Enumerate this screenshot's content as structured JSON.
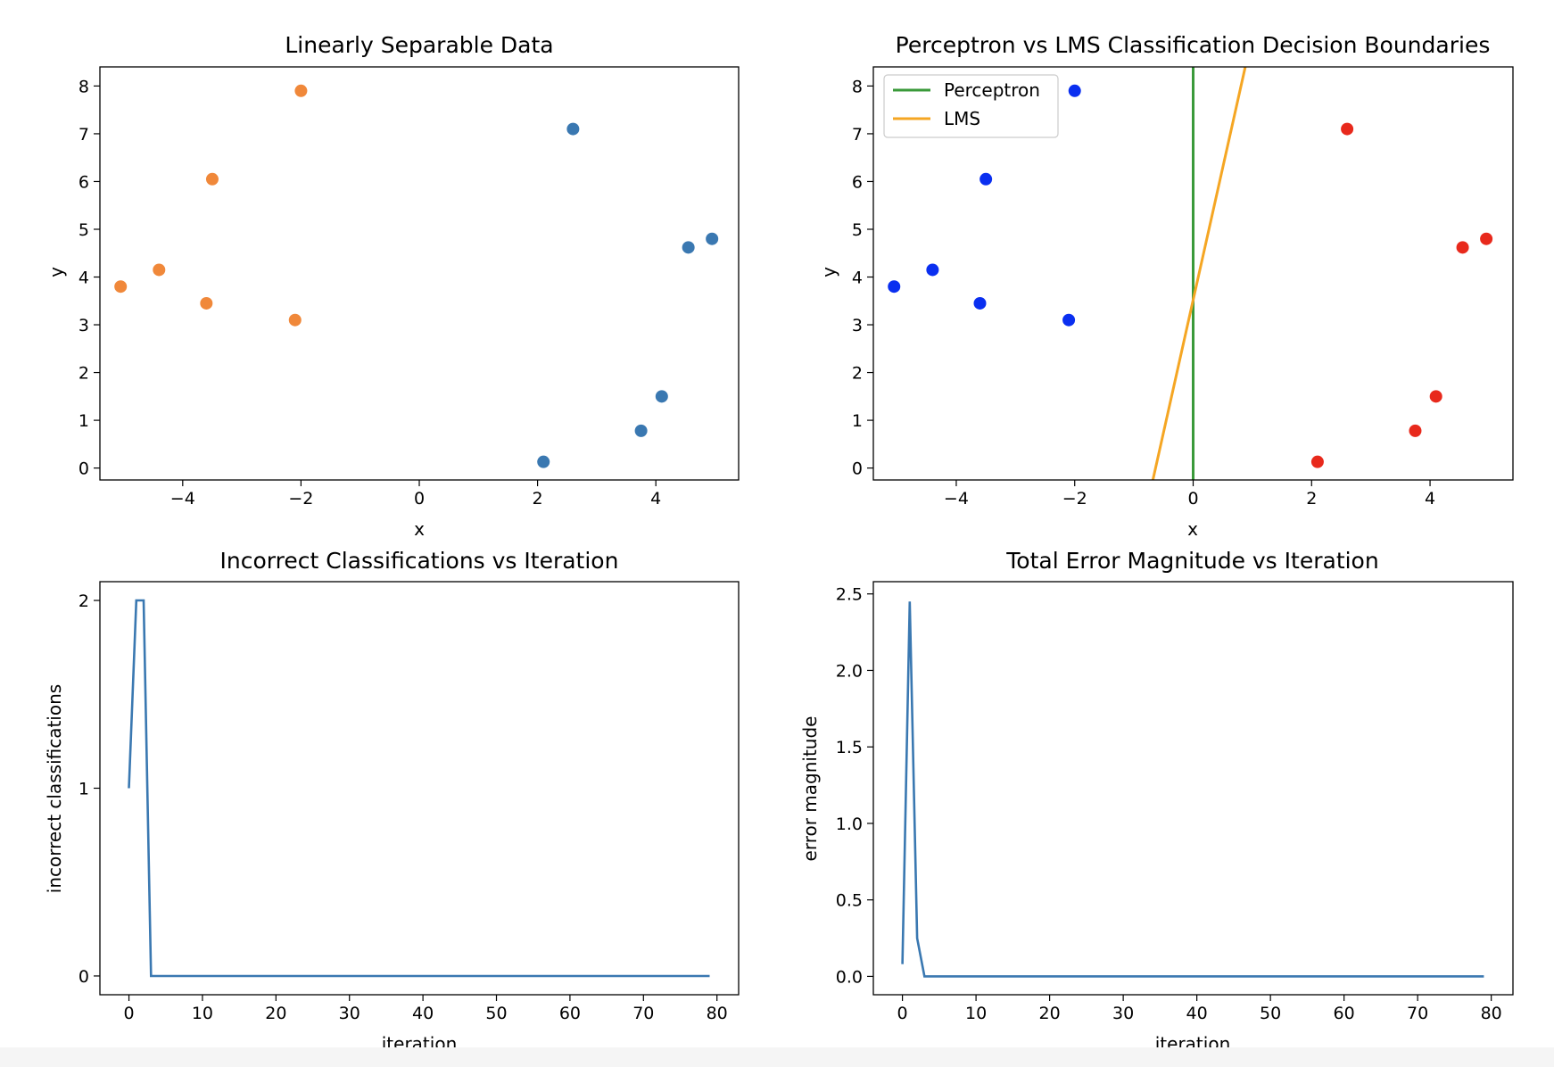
{
  "chart_data": [
    {
      "type": "scatter",
      "title": "Linearly Separable Data",
      "xlabel": "x",
      "ylabel": "y",
      "xlim": [
        -5.4,
        5.4
      ],
      "ylim": [
        -0.25,
        8.4
      ],
      "xticks": [
        -4,
        -2,
        0,
        2,
        4
      ],
      "yticks": [
        0,
        1,
        2,
        3,
        4,
        5,
        6,
        7,
        8
      ],
      "grid": false,
      "series": [
        {
          "color": "#f0883a",
          "points": [
            [
              -2.0,
              7.9
            ],
            [
              -3.5,
              6.05
            ],
            [
              -4.4,
              4.15
            ],
            [
              -5.05,
              3.8
            ],
            [
              -3.6,
              3.45
            ],
            [
              -2.1,
              3.1
            ]
          ]
        },
        {
          "color": "#3a78b1",
          "points": [
            [
              2.6,
              7.1
            ],
            [
              4.55,
              4.62
            ],
            [
              4.95,
              4.8
            ],
            [
              4.1,
              1.5
            ],
            [
              3.75,
              0.78
            ],
            [
              2.1,
              0.13
            ]
          ]
        }
      ]
    },
    {
      "type": "scatter",
      "title": "Perceptron vs LMS Classification Decision Boundaries",
      "xlabel": "x",
      "ylabel": "y",
      "xlim": [
        -5.4,
        5.4
      ],
      "ylim": [
        -0.25,
        8.4
      ],
      "xticks": [
        -4,
        -2,
        0,
        2,
        4
      ],
      "yticks": [
        0,
        1,
        2,
        3,
        4,
        5,
        6,
        7,
        8
      ],
      "grid": false,
      "legend_position": "top-left",
      "series": [
        {
          "color": "#0a2ff0",
          "points": [
            [
              -2.0,
              7.9
            ],
            [
              -3.5,
              6.05
            ],
            [
              -4.4,
              4.15
            ],
            [
              -5.05,
              3.8
            ],
            [
              -3.6,
              3.45
            ],
            [
              -2.1,
              3.1
            ]
          ]
        },
        {
          "color": "#e8291c",
          "points": [
            [
              2.6,
              7.1
            ],
            [
              4.55,
              4.62
            ],
            [
              4.95,
              4.8
            ],
            [
              4.1,
              1.5
            ],
            [
              3.75,
              0.78
            ],
            [
              2.1,
              0.13
            ]
          ]
        }
      ],
      "lines": [
        {
          "name": "Perceptron",
          "color": "#3a9a3a",
          "x": [
            0,
            0
          ],
          "y": [
            -0.25,
            8.4
          ]
        },
        {
          "name": "LMS",
          "color": "#f5a623",
          "x": [
            -0.68,
            0.88
          ],
          "y": [
            -0.25,
            8.4
          ]
        }
      ]
    },
    {
      "type": "line",
      "title": "Incorrect Classifications vs Iteration",
      "xlabel": "iteration",
      "ylabel": "incorrect classifications",
      "xlim": [
        -3.95,
        82.95
      ],
      "ylim": [
        -0.1,
        2.1
      ],
      "xticks": [
        0,
        10,
        20,
        30,
        40,
        50,
        60,
        70,
        80
      ],
      "yticks": [
        0,
        1,
        2
      ],
      "grid": false,
      "series": [
        {
          "color": "#3a78b1",
          "x": [
            0,
            1,
            2,
            3,
            79
          ],
          "y": [
            1,
            2,
            2,
            0,
            0
          ]
        }
      ]
    },
    {
      "type": "line",
      "title": "Total Error Magnitude vs Iteration",
      "xlabel": "iteration",
      "ylabel": "error magnitude",
      "xlim": [
        -3.95,
        82.95
      ],
      "ylim": [
        -0.12,
        2.58
      ],
      "xticks": [
        0,
        10,
        20,
        30,
        40,
        50,
        60,
        70,
        80
      ],
      "yticks": [
        0.0,
        0.5,
        1.0,
        1.5,
        2.0,
        2.5
      ],
      "ytick_labels": [
        "0.0",
        "0.5",
        "1.0",
        "1.5",
        "2.0",
        "2.5"
      ],
      "grid": false,
      "series": [
        {
          "color": "#3a78b1",
          "x": [
            0,
            1,
            2,
            3,
            79
          ],
          "y": [
            0.08,
            2.45,
            0.25,
            0.0,
            0.0
          ]
        }
      ]
    }
  ]
}
